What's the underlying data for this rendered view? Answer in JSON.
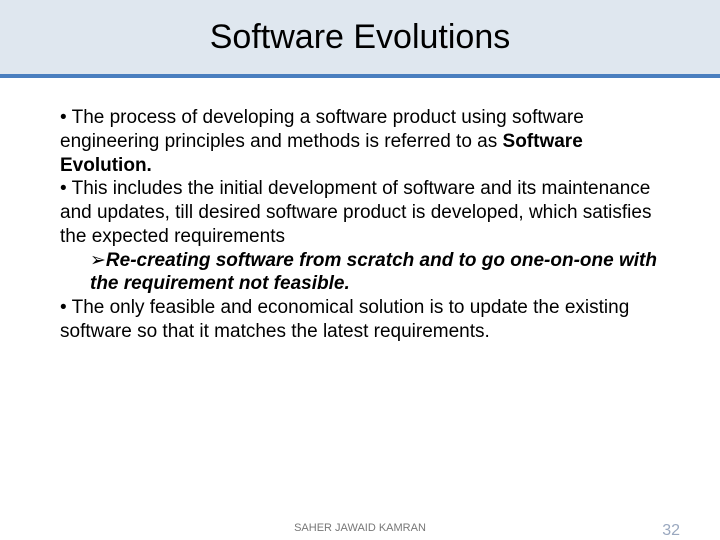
{
  "colors": {
    "title_band_bg": "#dfe7ef",
    "divider_bg": "#4a7fbf",
    "text": "#000000",
    "footer_author": "#777777",
    "footer_pagenum": "#9aa8bf"
  },
  "title": "Software Evolutions",
  "bullets": {
    "b1_prefix": "• The process of developing a software product using software engineering principles and methods is referred to as ",
    "b1_bold": "Software Evolution.",
    "b2": "• This includes the initial development of software and its maintenance and updates, till desired software product is developed, which satisfies the expected requirements",
    "sub_arrow": "➢",
    "sub_text": "Re-creating software from scratch and to go one-on-one with the requirement not feasible.",
    "b3": "• The only feasible and economical solution is to update the existing software so that it matches the latest requirements."
  },
  "footer": {
    "author": "SAHER JAWAID KAMRAN",
    "page": "32"
  }
}
